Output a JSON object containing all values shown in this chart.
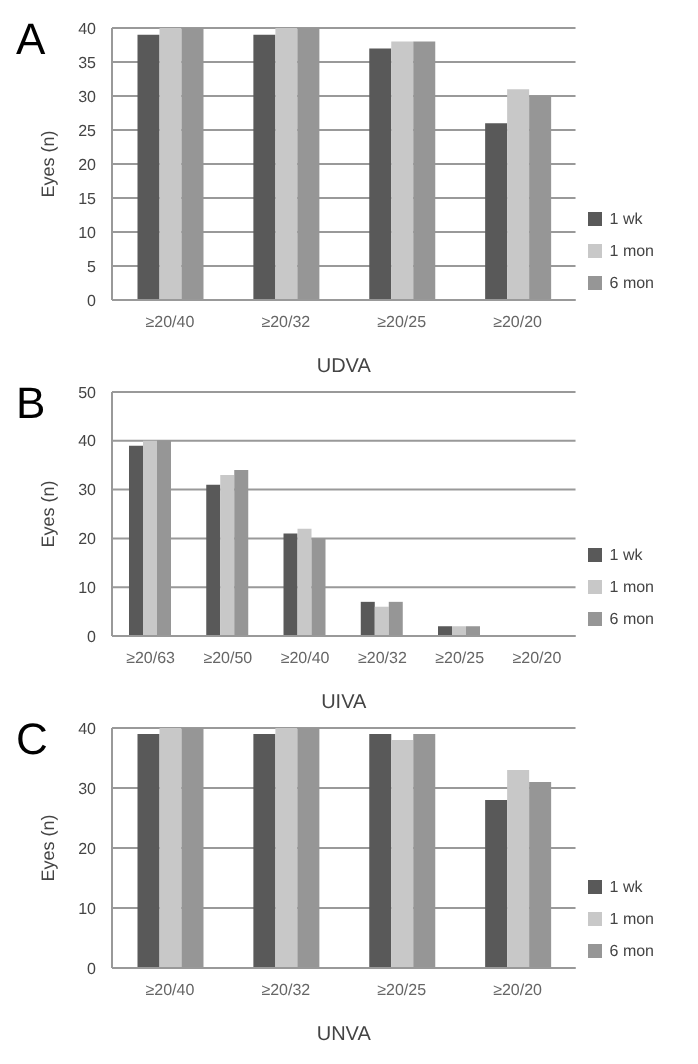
{
  "chart_data": [
    {
      "type": "bar",
      "title": "A",
      "xlabel": "UDVA",
      "ylabel": "Eyes (n)",
      "categories": [
        "≥20/40",
        "≥20/32",
        "≥20/25",
        "≥20/20"
      ],
      "series": [
        {
          "name": "1 wk",
          "color": "#595959",
          "values": [
            39,
            39,
            37,
            26
          ]
        },
        {
          "name": "1 mon",
          "color": "#c8c8c8",
          "values": [
            40,
            40,
            38,
            31
          ]
        },
        {
          "name": "6 mon",
          "color": "#969696",
          "values": [
            40,
            40,
            38,
            30
          ]
        }
      ],
      "ylim": [
        0,
        40
      ],
      "yticks": [
        0,
        5,
        10,
        15,
        20,
        25,
        30,
        35,
        40
      ],
      "grid": "y",
      "legend": "bottom right"
    },
    {
      "type": "bar",
      "title": "B",
      "xlabel": "UIVA",
      "ylabel": "Eyes (n)",
      "categories": [
        "≥20/63",
        "≥20/50",
        "≥20/40",
        "≥20/32",
        "≥20/25",
        "≥20/20"
      ],
      "series": [
        {
          "name": "1 wk",
          "color": "#595959",
          "values": [
            39,
            31,
            21,
            7,
            2,
            0
          ]
        },
        {
          "name": "1 mon",
          "color": "#c8c8c8",
          "values": [
            40,
            33,
            22,
            6,
            2,
            0
          ]
        },
        {
          "name": "6 mon",
          "color": "#969696",
          "values": [
            40,
            34,
            20,
            7,
            2,
            0
          ]
        }
      ],
      "ylim": [
        0,
        50
      ],
      "yticks": [
        0,
        10,
        20,
        30,
        40,
        50
      ],
      "grid": "y",
      "legend": "bottom right"
    },
    {
      "type": "bar",
      "title": "C",
      "xlabel": "UNVA",
      "ylabel": "Eyes (n)",
      "categories": [
        "≥20/40",
        "≥20/32",
        "≥20/25",
        "≥20/20"
      ],
      "series": [
        {
          "name": "1 wk",
          "color": "#595959",
          "values": [
            39,
            39,
            39,
            28
          ]
        },
        {
          "name": "1 mon",
          "color": "#c8c8c8",
          "values": [
            40,
            40,
            38,
            33
          ]
        },
        {
          "name": "6 mon",
          "color": "#969696",
          "values": [
            40,
            40,
            39,
            31
          ]
        }
      ],
      "ylim": [
        0,
        40
      ],
      "yticks": [
        0,
        10,
        20,
        30,
        40
      ],
      "grid": "y",
      "legend": "bottom right"
    }
  ]
}
